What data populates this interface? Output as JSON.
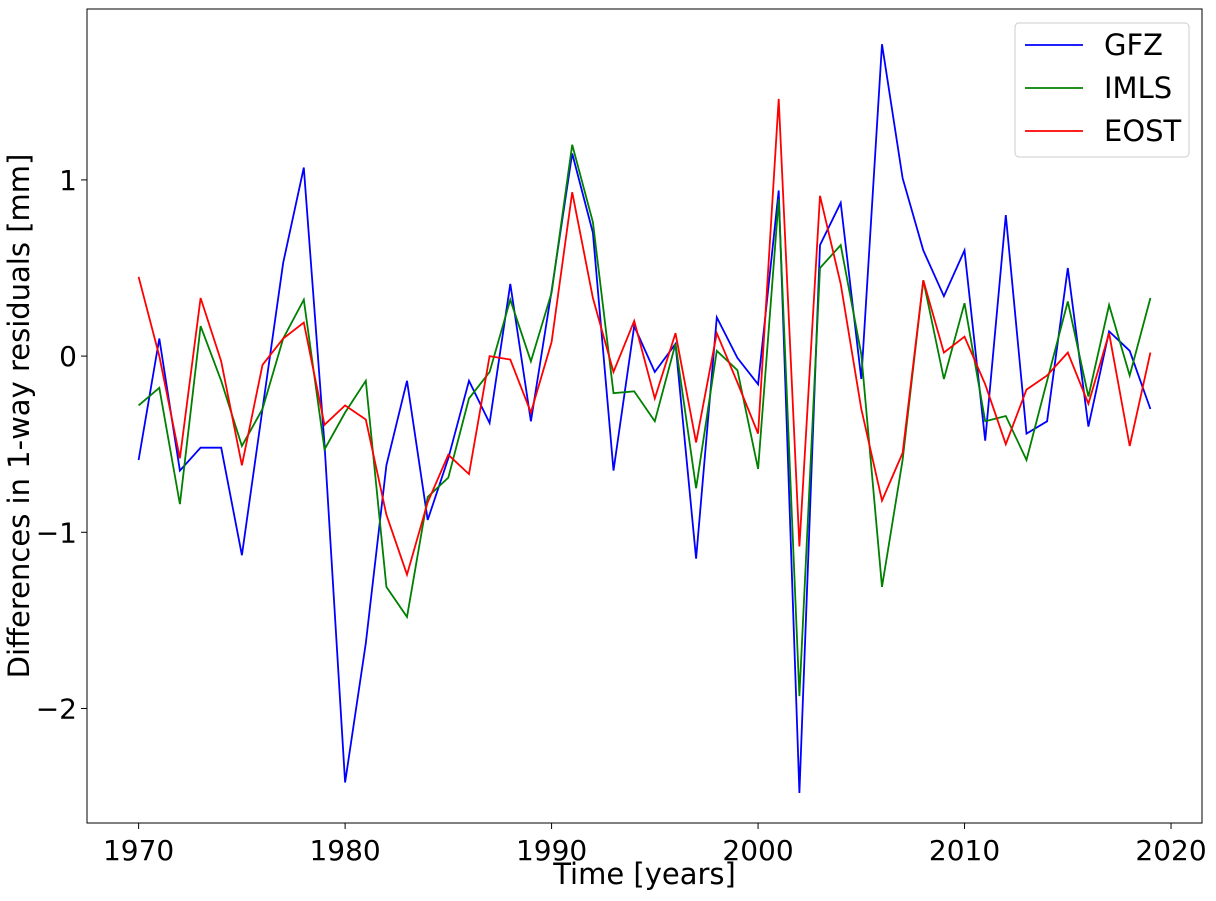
{
  "chart_data": {
    "type": "line",
    "title": "",
    "xlabel": "Time [years]",
    "ylabel": "Differences in 1-way residuals [mm]",
    "xlim": [
      1967.5,
      2021.5
    ],
    "ylim": [
      -2.65,
      1.97
    ],
    "xticks": [
      1970,
      1980,
      1990,
      2000,
      2010,
      2020
    ],
    "xtick_labels": [
      "1970",
      "1980",
      "1990",
      "2000",
      "2010",
      "2020"
    ],
    "yticks": [
      -2,
      -1,
      0,
      1
    ],
    "ytick_labels": [
      "−2",
      "−1",
      "0",
      "1"
    ],
    "grid": false,
    "legend_position": "top-right",
    "x": [
      1970,
      1971,
      1972,
      1973,
      1974,
      1975,
      1976,
      1977,
      1978,
      1979,
      1980,
      1981,
      1982,
      1983,
      1984,
      1985,
      1986,
      1987,
      1988,
      1989,
      1990,
      1991,
      1992,
      1993,
      1994,
      1995,
      1996,
      1997,
      1998,
      1999,
      2000,
      2001,
      2002,
      2003,
      2004,
      2005,
      2006,
      2007,
      2008,
      2009,
      2010,
      2011,
      2012,
      2013,
      2014,
      2015,
      2016,
      2017,
      2018,
      2019
    ],
    "series": [
      {
        "name": "GFZ",
        "color": "#0000ff",
        "values": [
          -0.59,
          0.1,
          -0.65,
          -0.52,
          -0.52,
          -1.13,
          -0.3,
          0.53,
          1.07,
          -0.5,
          -2.42,
          -1.63,
          -0.62,
          -0.14,
          -0.93,
          -0.58,
          -0.14,
          -0.38,
          0.41,
          -0.37,
          0.37,
          1.15,
          0.7,
          -0.65,
          0.17,
          -0.09,
          0.07,
          -1.15,
          0.22,
          -0.01,
          -0.16,
          0.94,
          -2.48,
          0.63,
          0.87,
          -0.13,
          1.77,
          1.01,
          0.6,
          0.34,
          0.6,
          -0.48,
          0.8,
          -0.44,
          -0.37,
          0.5,
          -0.4,
          0.14,
          0.03,
          -0.3
        ]
      },
      {
        "name": "IMLS",
        "color": "#008000",
        "values": [
          -0.28,
          -0.18,
          -0.84,
          0.17,
          -0.14,
          -0.51,
          -0.3,
          0.1,
          0.32,
          -0.53,
          -0.32,
          -0.14,
          -1.31,
          -1.48,
          -0.8,
          -0.69,
          -0.24,
          -0.09,
          0.32,
          -0.03,
          0.36,
          1.2,
          0.76,
          -0.21,
          -0.2,
          -0.37,
          0.07,
          -0.75,
          0.03,
          -0.08,
          -0.64,
          0.89,
          -1.93,
          0.5,
          0.63,
          0.01,
          -1.31,
          -0.59,
          0.43,
          -0.13,
          0.3,
          -0.37,
          -0.34,
          -0.59,
          -0.14,
          0.31,
          -0.23,
          0.29,
          -0.11,
          0.33
        ]
      },
      {
        "name": "EOST",
        "color": "#ff0000",
        "values": [
          0.45,
          0.0,
          -0.58,
          0.33,
          -0.03,
          -0.62,
          -0.05,
          0.1,
          0.19,
          -0.39,
          -0.28,
          -0.36,
          -0.9,
          -1.24,
          -0.83,
          -0.56,
          -0.67,
          0.0,
          -0.02,
          -0.32,
          0.08,
          0.93,
          0.33,
          -0.09,
          0.2,
          -0.24,
          0.13,
          -0.49,
          0.13,
          -0.15,
          -0.44,
          1.46,
          -1.08,
          0.91,
          0.41,
          -0.3,
          -0.82,
          -0.55,
          0.43,
          0.02,
          0.11,
          -0.16,
          -0.5,
          -0.19,
          -0.11,
          0.02,
          -0.27,
          0.13,
          -0.51,
          0.02
        ]
      }
    ]
  }
}
